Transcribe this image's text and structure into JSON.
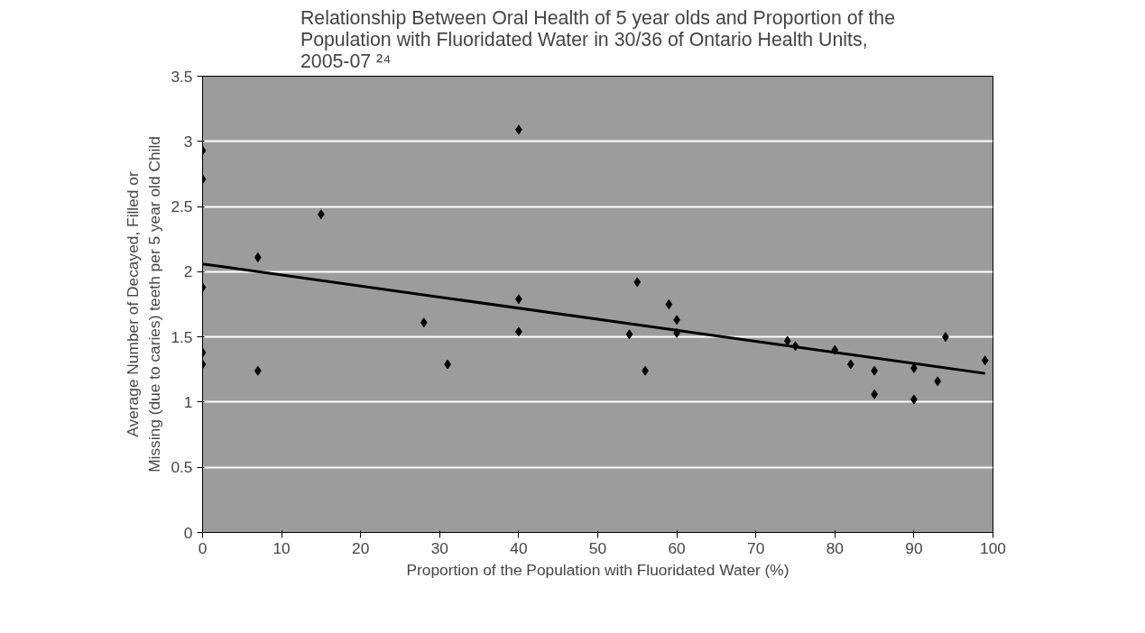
{
  "chart_data": {
    "type": "scatter",
    "title": "Relationship Between Oral Health of 5 year olds and Proportion of the\nPopulation with Fluoridated Water in 30/36 of Ontario Health Units,\n2005-07 ²⁴",
    "xlabel": "Proportion of the Population with Fluoridated Water (%)",
    "ylabel": "Average Number of Decayed, Filled or\nMissing (due to caries) teeth per 5 year old Child",
    "xlim": [
      0,
      100
    ],
    "xticks": [
      0,
      10,
      20,
      30,
      40,
      50,
      60,
      70,
      80,
      90,
      100
    ],
    "ylim": [
      0,
      3.5
    ],
    "yticks": [
      0,
      0.5,
      1,
      1.5,
      2,
      2.5,
      3,
      3.5
    ],
    "grid": "y",
    "series": [
      {
        "marker": "diamond",
        "color": "#000000",
        "x": [
          0,
          0,
          0,
          0,
          0,
          7,
          7,
          15,
          28,
          31,
          40,
          40,
          40,
          54,
          55,
          56,
          59,
          60,
          60,
          74,
          75,
          80,
          82,
          85,
          85,
          90,
          90,
          93,
          94,
          99
        ],
        "values": [
          2.93,
          2.71,
          1.88,
          1.38,
          1.29,
          2.11,
          1.24,
          2.44,
          1.61,
          1.29,
          3.09,
          1.79,
          1.54,
          1.52,
          1.92,
          1.24,
          1.75,
          1.63,
          1.53,
          1.47,
          1.43,
          1.4,
          1.29,
          1.24,
          1.06,
          1.26,
          1.02,
          1.16,
          1.5,
          1.32
        ]
      },
      {
        "type": "line",
        "color": "#000000",
        "x": [
          0,
          99
        ],
        "values": [
          2.06,
          1.22
        ]
      }
    ]
  }
}
